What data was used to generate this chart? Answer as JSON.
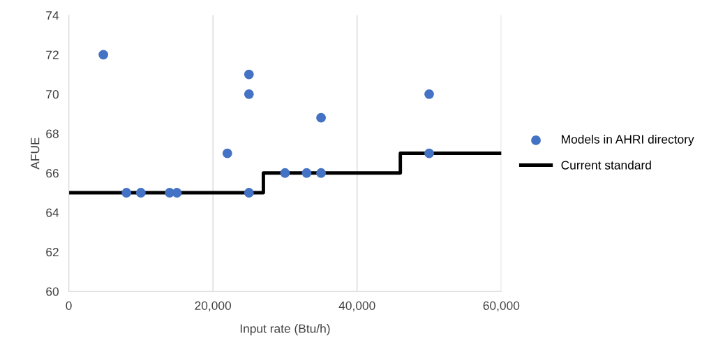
{
  "chart_data": {
    "type": "scatter",
    "xlabel": "Input rate (Btu/h)",
    "ylabel": "AFUE",
    "series": [
      {
        "name": "Models in AHRI directory",
        "marker": "circle",
        "color": "#4472c4",
        "x": [
          4800,
          8000,
          10000,
          14000,
          15000,
          22000,
          25000,
          25000,
          25000,
          30000,
          33000,
          35000,
          35000,
          50000,
          50000
        ],
        "values": [
          72,
          65,
          65,
          65,
          65,
          67,
          71,
          70,
          65,
          66,
          66,
          66,
          68.8,
          70,
          67
        ]
      },
      {
        "name": "Current standard",
        "type": "step",
        "color": "#000000",
        "x": [
          0,
          27000,
          46000,
          60000
        ],
        "values": [
          65,
          66,
          67,
          67
        ]
      }
    ],
    "xlim": [
      0,
      60000
    ],
    "xticks": [
      {
        "value": 0,
        "label": "0"
      },
      {
        "value": 20000,
        "label": "20,000"
      },
      {
        "value": 40000,
        "label": "40,000"
      },
      {
        "value": 60000,
        "label": "60,000"
      }
    ],
    "ylim": [
      60,
      74
    ],
    "yticks": [
      60,
      62,
      64,
      66,
      68,
      70,
      72,
      74
    ],
    "grid": "x",
    "legend": "right"
  }
}
